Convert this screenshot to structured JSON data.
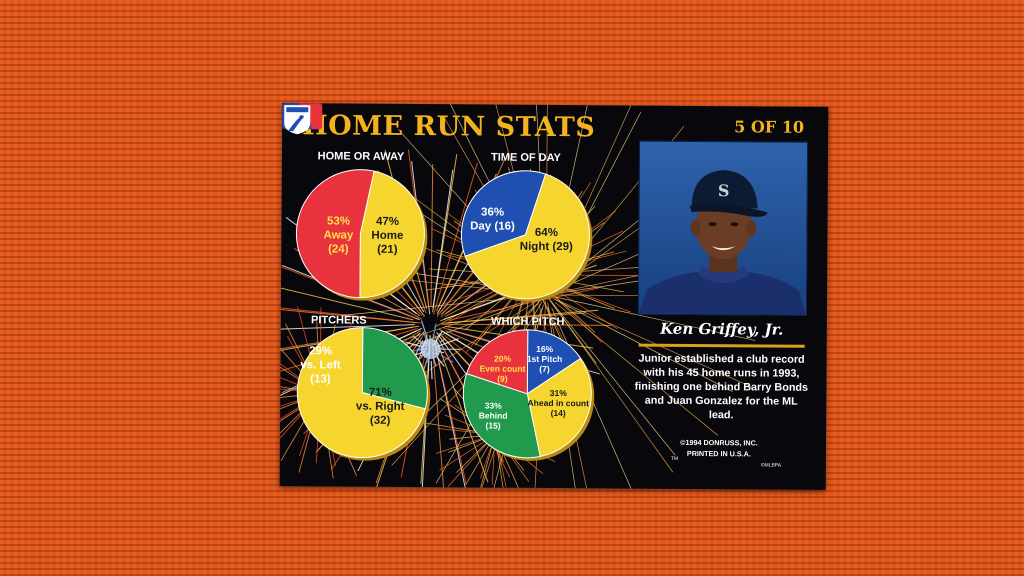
{
  "card": {
    "title": "HOME RUN STATS",
    "card_number": "5 OF 10",
    "player_name": "Ken Griffey, Jr.",
    "bio": "Junior established a club record with his 45 home runs in 1993, finishing one behind Barry Bonds and Juan Gonzalez for the ML lead.",
    "copyright_line1": "©1994 DONRUSS, INC.",
    "copyright_line2": "PRINTED IN U.S.A.",
    "tm": "TM",
    "mlbpa_label": "©MLBPA",
    "colors": {
      "red": "#e8333f",
      "yellow": "#f5d52e",
      "blue": "#1f4fb0",
      "green": "#229a4d",
      "gold": "#f2b31e",
      "background": "#07070c"
    },
    "icons": [
      "fireworks-background",
      "mlb-logo-icon",
      "mlbpa-logo-icon"
    ]
  },
  "chart_data": [
    {
      "type": "pie",
      "title": "HOME OR AWAY",
      "slices": [
        {
          "pct": "53%",
          "label": "Away",
          "count": "(24)",
          "value": 24,
          "color": "#e8333f"
        },
        {
          "pct": "47%",
          "label": "Home",
          "count": "(21)",
          "value": 21,
          "color": "#f5d52e"
        }
      ]
    },
    {
      "type": "pie",
      "title": "TIME OF DAY",
      "slices": [
        {
          "pct": "36%",
          "label": "Day (16)",
          "count": "",
          "value": 16,
          "color": "#1f4fb0"
        },
        {
          "pct": "64%",
          "label": "Night (29)",
          "count": "",
          "value": 29,
          "color": "#f5d52e"
        }
      ]
    },
    {
      "type": "pie",
      "title": "PITCHERS",
      "slices": [
        {
          "pct": "29%",
          "label": "vs. Left",
          "count": "(13)",
          "value": 13,
          "color": "#229a4d"
        },
        {
          "pct": "71%",
          "label": "vs. Right",
          "count": "(32)",
          "value": 32,
          "color": "#f5d52e"
        }
      ]
    },
    {
      "type": "pie",
      "title": "WHICH PITCH",
      "slices": [
        {
          "pct": "16%",
          "label": "1st Pitch",
          "count": "(7)",
          "value": 7,
          "color": "#1f4fb0"
        },
        {
          "pct": "31%",
          "label": "Ahead in count",
          "count": "(14)",
          "value": 14,
          "color": "#f5d52e"
        },
        {
          "pct": "33%",
          "label": "Behind",
          "count": "(15)",
          "value": 15,
          "color": "#229a4d"
        },
        {
          "pct": "20%",
          "label": "Even count",
          "count": "(9)",
          "value": 9,
          "color": "#e8333f"
        }
      ]
    }
  ]
}
